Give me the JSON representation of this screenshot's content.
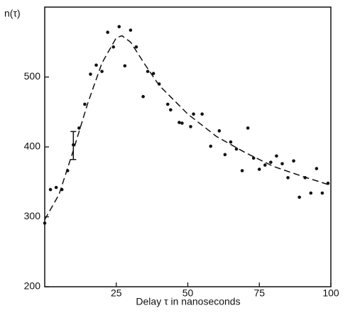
{
  "chart_data": {
    "type": "scatter",
    "y_label": "n(τ)",
    "x_label": "Delay τ in nanoseconds",
    "color": "#111111",
    "xlim": [
      0,
      100
    ],
    "xticks": [
      25,
      50,
      75,
      100
    ],
    "ylim": [
      200,
      600
    ],
    "yticks": [
      200,
      300,
      400,
      500
    ],
    "x": [
      0,
      2,
      4,
      6,
      8,
      10,
      12,
      14,
      16,
      18,
      20,
      22,
      24,
      26,
      28,
      30,
      32,
      34.4,
      36,
      38,
      40,
      43,
      44,
      47,
      48,
      51,
      52,
      55,
      58,
      61,
      63,
      65,
      67,
      69,
      71,
      73,
      75,
      77,
      79,
      81,
      83,
      85,
      87,
      89,
      91,
      93,
      95,
      97,
      99
    ],
    "series": [
      {
        "values": [
          291,
          339,
          342,
          339,
          366,
          403,
          427,
          461,
          504,
          517,
          508,
          564,
          543,
          572,
          516,
          567,
          543,
          472,
          508,
          505,
          490,
          461,
          453,
          435,
          434,
          429,
          447,
          447,
          401,
          423,
          389,
          407,
          397,
          366,
          427,
          384,
          368,
          374,
          378,
          387,
          376,
          356,
          380,
          328,
          356,
          334,
          369,
          334,
          348
        ]
      }
    ],
    "fit": {
      "x": [
        0,
        5,
        10,
        15,
        20,
        25,
        27,
        30,
        35,
        40,
        50,
        60,
        70,
        80,
        90,
        100
      ],
      "values": [
        296,
        332,
        395,
        462,
        520,
        556,
        559,
        550,
        518,
        488,
        447,
        415,
        392,
        372,
        358,
        345
      ]
    },
    "error_bar": {
      "x": 10,
      "value": 402,
      "error": 20
    }
  }
}
